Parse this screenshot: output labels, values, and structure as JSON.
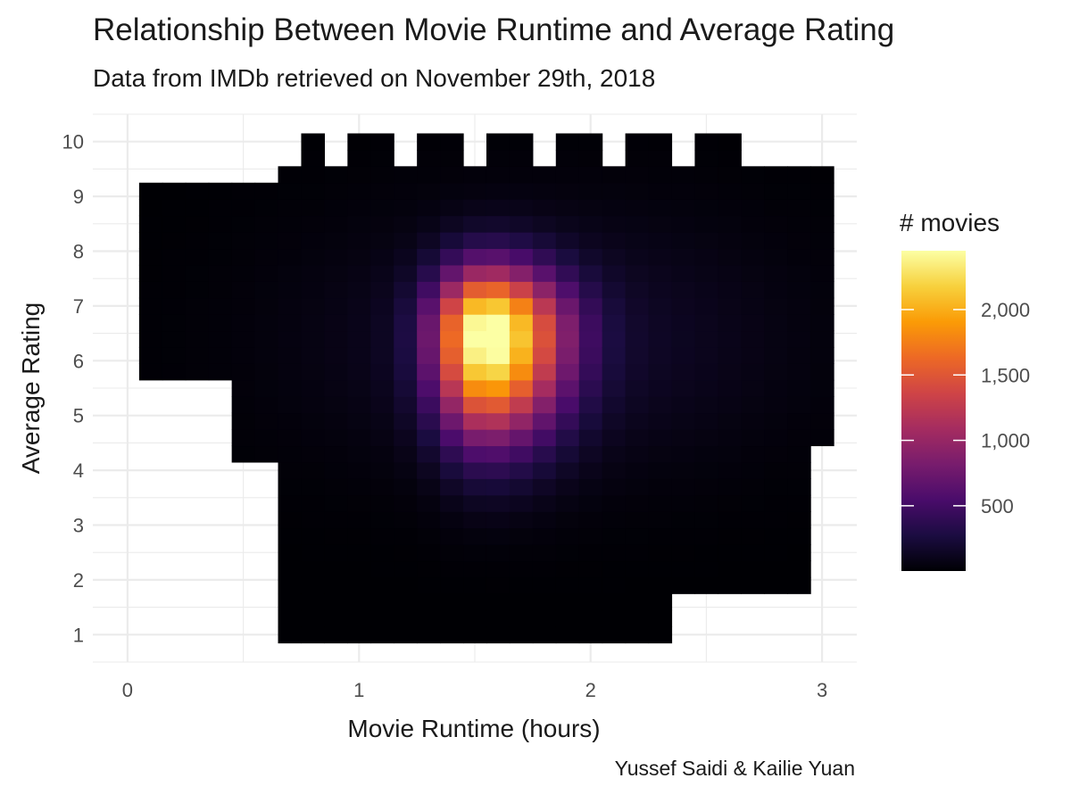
{
  "chart_data": {
    "type": "heatmap",
    "title": "Relationship Between Movie Runtime and Average Rating",
    "subtitle": "Data from IMDb retrieved on November 29th, 2018",
    "caption": "Yussef Saidi & Kailie Yuan",
    "xlabel": "Movie Runtime (hours)",
    "ylabel": "Average Rating",
    "xlim": [
      -0.15,
      3.15
    ],
    "ylim": [
      0.5,
      10.5
    ],
    "x_ticks": [
      0,
      1,
      2,
      3
    ],
    "y_ticks": [
      1,
      2,
      3,
      4,
      5,
      6,
      7,
      8,
      9,
      10
    ],
    "x_tick_labels": [
      "0",
      "1",
      "2",
      "3"
    ],
    "y_tick_labels": [
      "1",
      "2",
      "3",
      "4",
      "5",
      "6",
      "7",
      "8",
      "9",
      "10"
    ],
    "grid": true,
    "bin_width_x": 0.1,
    "bin_width_y": 0.3,
    "legend": {
      "title": "# movies",
      "position": "right",
      "min": 1,
      "max": 2450,
      "ticks": [
        500,
        1000,
        1500,
        2000
      ],
      "tick_labels": [
        "500",
        "1,000",
        "1,500",
        "2,000"
      ],
      "palette": [
        "#000004",
        "#1b0c41",
        "#4a0c6b",
        "#781c6d",
        "#a52c60",
        "#cf4446",
        "#ed6925",
        "#fb9b06",
        "#f7d13d",
        "#fcffa4"
      ]
    },
    "peak": {
      "x": 1.55,
      "y": 6.5,
      "count": 2450
    }
  }
}
